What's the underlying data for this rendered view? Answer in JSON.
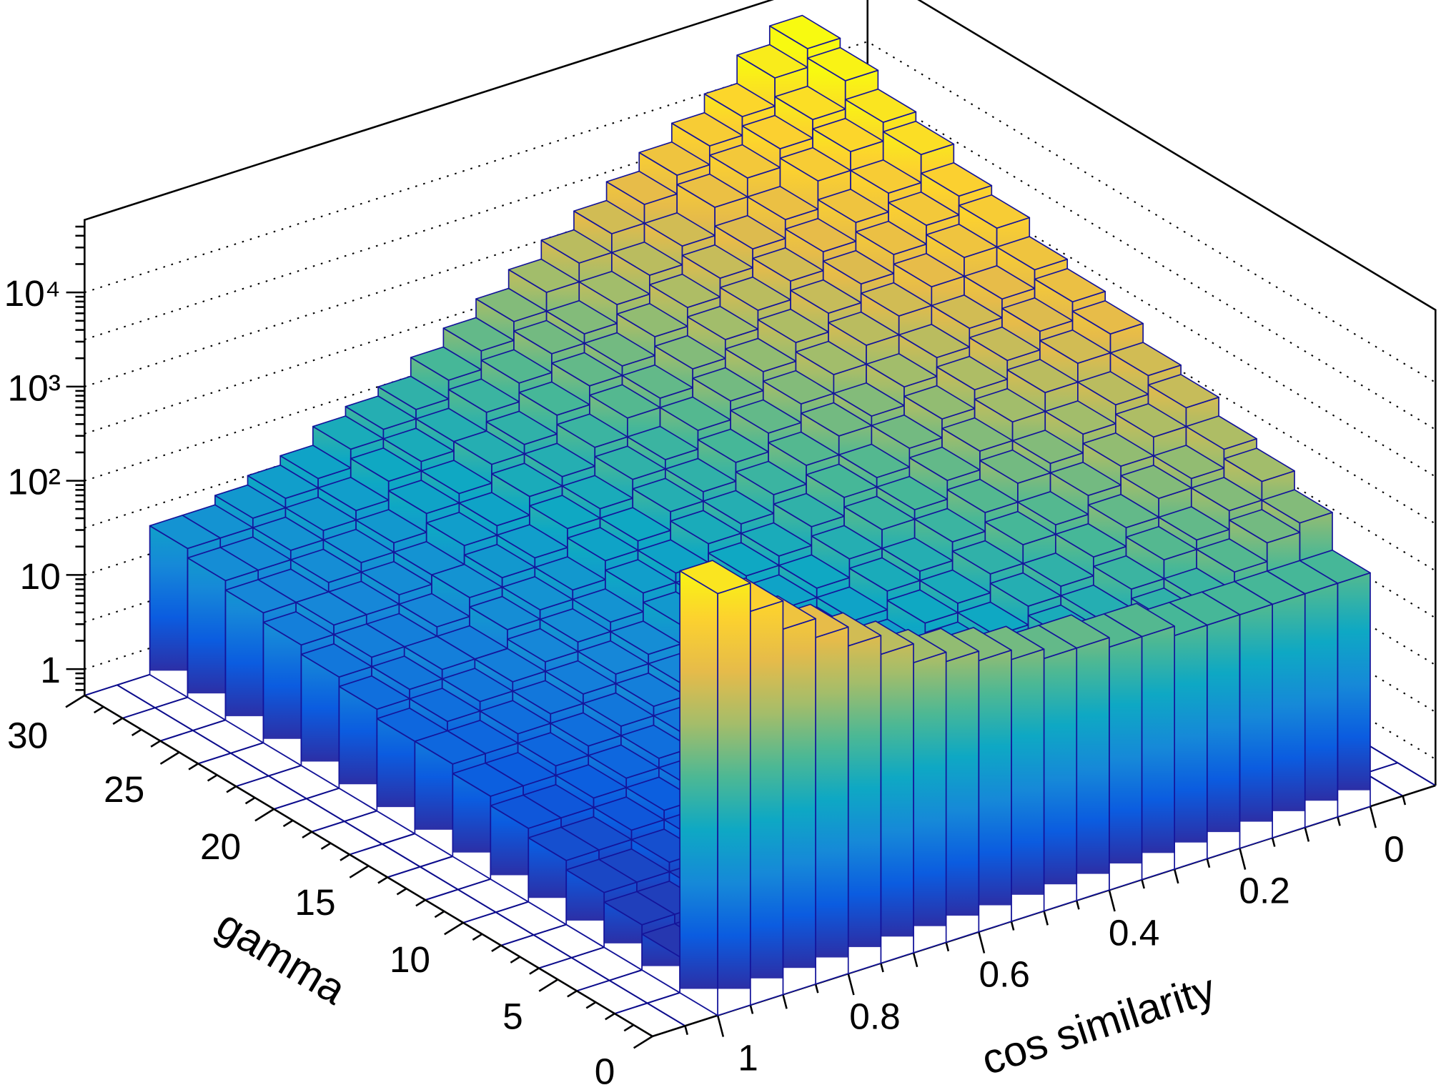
{
  "chart_data": {
    "type": "bar",
    "style": "lego-3d",
    "title": "",
    "xlabel": "cos similarity",
    "ylabel": "gamma",
    "zlabel": "",
    "z_scale": "log",
    "xlim": [
      -0.1,
      1.1
    ],
    "ylim": [
      0,
      30
    ],
    "zlim": [
      0.52,
      30000
    ],
    "grid": true,
    "x_ticks": [
      "1",
      "0.8",
      "0.6",
      "0.4",
      "0.2",
      "0"
    ],
    "y_ticks": [
      "0",
      "5",
      "10",
      "15",
      "20",
      "25",
      "30"
    ],
    "z_ticks": [
      "1",
      "10",
      "10²",
      "10³",
      "10⁴"
    ],
    "cos_bin_low_edges": [
      0.0,
      0.05,
      0.1,
      0.15,
      0.2,
      0.25,
      0.3,
      0.35,
      0.4,
      0.45,
      0.5,
      0.55,
      0.6,
      0.65,
      0.7,
      0.75,
      0.8,
      0.85,
      0.9,
      0.95
    ],
    "cos_bin_width": 0.05,
    "gamma_bin_low_edges": [
      0,
      2,
      4,
      6,
      8,
      10,
      12,
      14,
      16,
      18,
      20,
      22,
      24,
      26,
      28
    ],
    "gamma_bin_width": 2,
    "values_log10": [
      [
        2.2,
        2.2,
        2.2,
        2.2,
        2.2,
        2.2,
        2.3,
        2.3,
        2.4,
        2.4,
        2.5,
        2.6,
        2.7,
        2.8,
        3.0,
        3.2,
        3.4,
        3.6,
        3.9,
        4.2
      ],
      [
        2.6,
        2.5,
        2.3,
        2.1,
        2.0,
        1.8,
        1.6,
        1.5,
        1.3,
        1.2,
        1.1,
        0.9,
        0.8,
        0.7,
        0.5,
        0.4,
        0.3,
        0.2,
        0.1,
        0.1
      ],
      [
        2.8,
        2.6,
        2.4,
        2.3,
        2.1,
        1.9,
        1.8,
        1.6,
        1.4,
        1.3,
        1.2,
        1.0,
        0.9,
        0.8,
        0.6,
        0.5,
        0.4,
        0.3,
        0.2,
        0.2
      ],
      [
        2.9,
        2.7,
        2.6,
        2.4,
        2.2,
        2.0,
        1.9,
        1.7,
        1.6,
        1.4,
        1.3,
        1.1,
        1.0,
        0.8,
        0.7,
        0.6,
        0.5,
        0.4,
        0.3,
        0.3
      ],
      [
        3.1,
        2.9,
        2.7,
        2.5,
        2.3,
        2.2,
        2.0,
        1.8,
        1.7,
        1.5,
        1.4,
        1.2,
        1.1,
        0.9,
        0.8,
        0.7,
        0.6,
        0.5,
        0.4,
        0.4
      ],
      [
        3.2,
        3.0,
        2.8,
        2.6,
        2.5,
        2.3,
        2.1,
        1.9,
        1.8,
        1.6,
        1.5,
        1.3,
        1.2,
        1.0,
        0.9,
        0.8,
        0.7,
        0.6,
        0.5,
        0.5
      ],
      [
        3.4,
        3.2,
        3.0,
        2.8,
        2.6,
        2.4,
        2.2,
        2.1,
        1.9,
        1.7,
        1.6,
        1.4,
        1.3,
        1.1,
        1.0,
        0.9,
        0.8,
        0.7,
        0.6,
        0.6
      ],
      [
        3.5,
        3.3,
        3.1,
        2.9,
        2.7,
        2.5,
        2.3,
        2.2,
        2.0,
        1.8,
        1.7,
        1.5,
        1.4,
        1.2,
        1.1,
        1.0,
        0.9,
        0.8,
        0.7,
        0.7
      ],
      [
        3.6,
        3.4,
        3.2,
        3.0,
        2.8,
        2.6,
        2.5,
        2.3,
        2.1,
        1.9,
        1.8,
        1.6,
        1.5,
        1.3,
        1.2,
        1.1,
        1.0,
        0.9,
        0.8,
        0.7
      ],
      [
        3.8,
        3.6,
        3.4,
        3.2,
        3.0,
        2.8,
        2.6,
        2.4,
        2.2,
        2.0,
        1.9,
        1.7,
        1.6,
        1.4,
        1.3,
        1.2,
        1.0,
        1.0,
        0.9,
        0.8
      ],
      [
        3.9,
        3.7,
        3.5,
        3.3,
        3.1,
        2.9,
        2.7,
        2.5,
        2.3,
        2.1,
        2.0,
        1.8,
        1.7,
        1.5,
        1.4,
        1.3,
        1.1,
        1.0,
        1.0,
        0.9
      ],
      [
        4.1,
        3.8,
        3.6,
        3.4,
        3.2,
        3.0,
        2.8,
        2.6,
        2.4,
        2.3,
        2.1,
        1.9,
        1.8,
        1.6,
        1.5,
        1.3,
        1.2,
        1.1,
        1.1,
        1.0
      ],
      [
        4.2,
        4.0,
        3.8,
        3.5,
        3.3,
        3.1,
        2.9,
        2.7,
        2.5,
        2.4,
        2.2,
        2.0,
        1.9,
        1.7,
        1.6,
        1.4,
        1.3,
        1.2,
        1.1,
        1.1
      ],
      [
        4.4,
        4.1,
        3.9,
        3.7,
        3.5,
        3.2,
        3.0,
        2.8,
        2.6,
        2.5,
        2.3,
        2.1,
        1.9,
        1.8,
        1.7,
        1.5,
        1.4,
        1.3,
        1.2,
        1.2
      ],
      [
        4.5,
        4.3,
        4.0,
        3.8,
        3.6,
        3.4,
        3.2,
        3.0,
        2.8,
        2.6,
        2.4,
        2.2,
        2.0,
        1.9,
        1.8,
        1.6,
        1.5,
        1.4,
        1.3,
        1.3
      ]
    ],
    "palette": [
      "#2c2fa6",
      "#0b5ce0",
      "#1689d8",
      "#0ea8c4",
      "#4cb894",
      "#a4bd6a",
      "#e6bb4a",
      "#fcd22e",
      "#f8fa10"
    ]
  }
}
